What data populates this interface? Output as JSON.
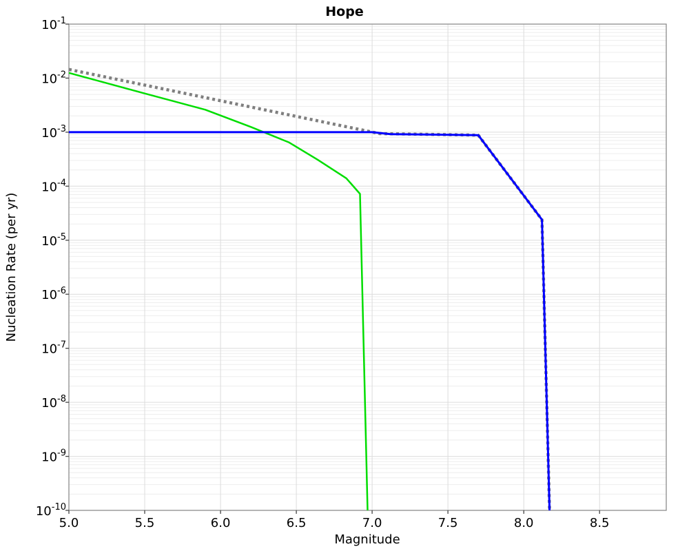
{
  "window": {
    "background": "#ffffff"
  },
  "chart_data": {
    "type": "line",
    "title": "Hope",
    "xlabel": "Magnitude",
    "ylabel": "Nucleation Rate (per yr)",
    "x_scale": "linear",
    "y_scale": "log",
    "xlim": [
      5.0,
      8.94
    ],
    "ylim": [
      1e-10,
      0.1
    ],
    "grid": {
      "on": true,
      "vertical_step": 0.5,
      "horizontal": "log decades with 2-9 minors",
      "minor_color": "#ededed",
      "major_color": "#dcdcdc"
    },
    "frame_color": "#8c8c8c",
    "legend": {
      "visible": false
    },
    "xticks": [
      {
        "value": 5.0,
        "label": "5.0"
      },
      {
        "value": 5.5,
        "label": "5.5"
      },
      {
        "value": 6.0,
        "label": "6.0"
      },
      {
        "value": 6.5,
        "label": "6.5"
      },
      {
        "value": 7.0,
        "label": "7.0"
      },
      {
        "value": 7.5,
        "label": "7.5"
      },
      {
        "value": 8.0,
        "label": "8.0"
      },
      {
        "value": 8.5,
        "label": "8.5"
      }
    ],
    "yticks": [
      {
        "value": 0.1,
        "mantissa": "10",
        "exponent": "-1"
      },
      {
        "value": 0.01,
        "mantissa": "10",
        "exponent": "-2"
      },
      {
        "value": 0.001,
        "mantissa": "10",
        "exponent": "-3"
      },
      {
        "value": 0.0001,
        "mantissa": "10",
        "exponent": "-4"
      },
      {
        "value": 1e-05,
        "mantissa": "10",
        "exponent": "-5"
      },
      {
        "value": 1e-06,
        "mantissa": "10",
        "exponent": "-6"
      },
      {
        "value": 1e-07,
        "mantissa": "10",
        "exponent": "-7"
      },
      {
        "value": 1e-08,
        "mantissa": "10",
        "exponent": "-8"
      },
      {
        "value": 1e-09,
        "mantissa": "10",
        "exponent": "-9"
      },
      {
        "value": 1e-10,
        "mantissa": "10",
        "exponent": "-10"
      }
    ],
    "series": [
      {
        "name": "dotted-reference-curve",
        "color": "#7f7f7f",
        "style": "dotted",
        "width": 4.5,
        "points": [
          [
            5.0,
            0.0145
          ],
          [
            7.05,
            0.00094
          ],
          [
            7.7,
            0.00088
          ],
          [
            8.12,
            2.4e-05
          ],
          [
            8.17,
            1e-10
          ]
        ]
      },
      {
        "name": "green-curve",
        "color": "#00dd00",
        "style": "solid",
        "width": 2.5,
        "points": [
          [
            5.0,
            0.0125
          ],
          [
            5.5,
            0.0052
          ],
          [
            5.9,
            0.0026
          ],
          [
            6.2,
            0.00125
          ],
          [
            6.45,
            0.00065
          ],
          [
            6.64,
            0.00031
          ],
          [
            6.83,
            0.00014
          ],
          [
            6.92,
            7.2e-05
          ],
          [
            6.97,
            1e-10
          ]
        ]
      },
      {
        "name": "blue-curve",
        "color": "#0000ff",
        "style": "solid",
        "width": 3,
        "points": [
          [
            5.0,
            0.001
          ],
          [
            7.0,
            0.001
          ],
          [
            7.12,
            0.00092
          ],
          [
            7.7,
            0.00088
          ],
          [
            8.12,
            2.4e-05
          ],
          [
            8.17,
            1e-10
          ]
        ]
      }
    ]
  }
}
